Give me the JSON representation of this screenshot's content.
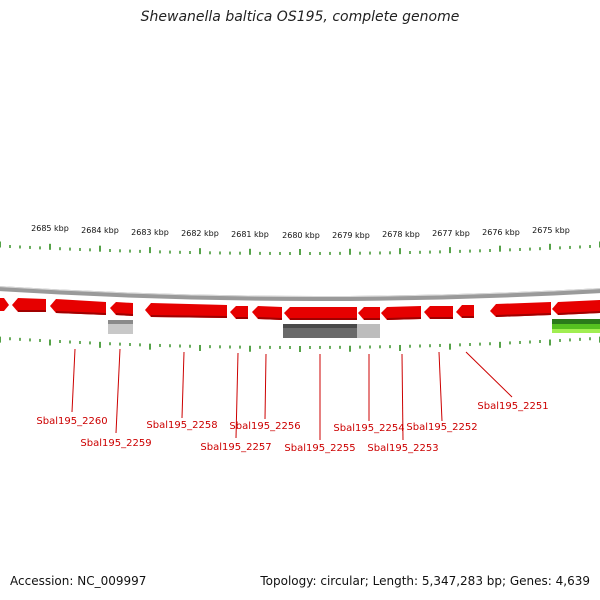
{
  "title": "Shewanella baltica OS195, complete genome",
  "footer": {
    "accession": "Accession: NC_009997",
    "summary": "Topology: circular; Length: 5,347,283 bp; Genes: 4,639"
  },
  "colors": {
    "gene": "#e60000",
    "gene_dark": "#a00000",
    "backbone": "#8a8a8a",
    "tick": "#2a8a1a",
    "label": "#cc0000",
    "gray_feature": "#6a6a6a",
    "light_gray_feature": "#c0c0c0",
    "green_feature": "#3aa01a",
    "light_green_feature": "#a0ee50"
  },
  "scale_labels": [
    "2685 kbp",
    "2684 kbp",
    "2683 kbp",
    "2682 kbp",
    "2681 kbp",
    "2680 kbp",
    "2679 kbp",
    "2678 kbp",
    "2677 kbp",
    "2676 kbp",
    "2675 kbp"
  ],
  "gene_labels": [
    "Sbal195_2260",
    "Sbal195_2259",
    "Sbal195_2258",
    "Sbal195_2257",
    "Sbal195_2256",
    "Sbal195_2255",
    "Sbal195_2254",
    "Sbal195_2253",
    "Sbal195_2252",
    "Sbal195_2251"
  ]
}
